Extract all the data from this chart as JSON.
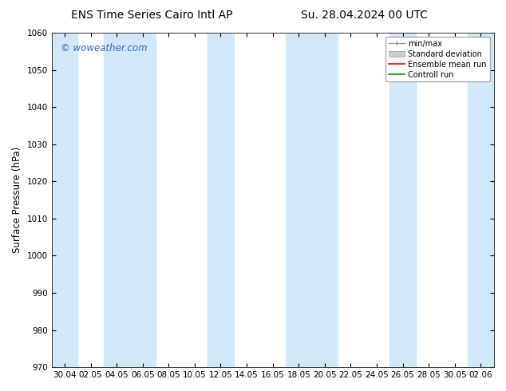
{
  "title_left": "ENS Time Series Cairo Intl AP",
  "title_right": "Su. 28.04.2024 00 UTC",
  "ylabel": "Surface Pressure (hPa)",
  "ylim": [
    970,
    1060
  ],
  "yticks": [
    970,
    980,
    990,
    1000,
    1010,
    1020,
    1030,
    1040,
    1050,
    1060
  ],
  "xtick_labels": [
    "30.04",
    "02.05",
    "04.05",
    "06.05",
    "08.05",
    "10.05",
    "12.05",
    "14.05",
    "16.05",
    "18.05",
    "20.05",
    "22.05",
    "24.05",
    "26.05",
    "28.05",
    "30.05",
    "02.06"
  ],
  "watermark": "© woweather.com",
  "watermark_color": "#3366cc",
  "bg_color": "#ffffff",
  "plot_bg_color": "#ffffff",
  "band_color": "#d0e8f8",
  "legend_entries": [
    "min/max",
    "Standard deviation",
    "Ensemble mean run",
    "Controll run"
  ],
  "legend_colors_line": [
    "#999999",
    "#bbbbbb",
    "#ff0000",
    "#009900"
  ],
  "title_fontsize": 10,
  "tick_fontsize": 7.5,
  "ylabel_fontsize": 8.5
}
